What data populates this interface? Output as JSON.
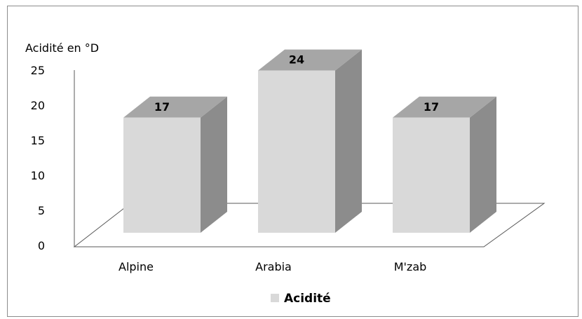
{
  "chart_data": {
    "type": "bar",
    "style": "3d-column",
    "categories": [
      "Alpine",
      "Arabia",
      "M'zab"
    ],
    "series": [
      {
        "name": "Acidité",
        "values": [
          17,
          24,
          17
        ]
      }
    ],
    "ylabel": "Acidité en °D",
    "ylim": [
      0,
      25
    ],
    "yticks": [
      0,
      5,
      10,
      15,
      20,
      25
    ],
    "data_labels": [
      "17",
      "24",
      "17"
    ],
    "legend_position": "bottom",
    "grid": false,
    "colors": {
      "front": "#d9d9d9",
      "side": "#8c8c8c",
      "top": "#a6a6a6",
      "frame": "#8c8c8c",
      "floor": "#595959"
    }
  }
}
